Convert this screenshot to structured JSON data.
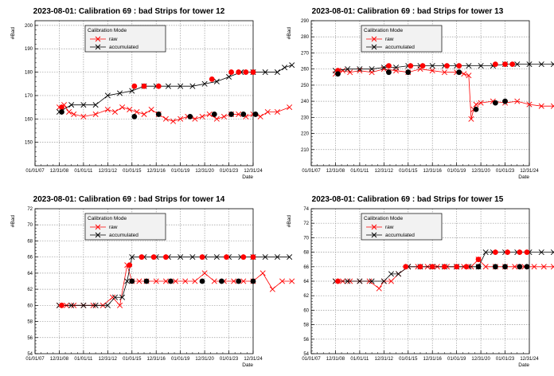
{
  "chart_data": [
    {
      "type": "scatter",
      "title": "2023-08-01: Calibration 69 : bad Strips for tower 12",
      "xlabel": "Date",
      "ylabel": "#Bad",
      "ylim": [
        140,
        202
      ],
      "yticks": [
        150,
        160,
        170,
        180,
        190,
        200
      ],
      "xtick_labels": [
        "01/01/07",
        "12/31/08",
        "01/01/11",
        "12/31/12",
        "01/01/15",
        "12/31/16",
        "01/01/19",
        "12/31/20",
        "01/01/23",
        "12/31/24"
      ],
      "legend": {
        "title": "Calibration Mode",
        "entries": [
          "raw",
          "accumulated"
        ]
      },
      "series": [
        {
          "name": "raw",
          "color": "#ff0000",
          "x": [
            1.0,
            1.2,
            1.4,
            1.6,
            2.0,
            2.5,
            3.0,
            3.3,
            3.6,
            3.9,
            4.2,
            4.5,
            4.8,
            5.1,
            5.4,
            5.7,
            6.0,
            6.3,
            6.6,
            6.9,
            7.2,
            7.5,
            7.8,
            8.1,
            8.4,
            8.7,
            9.0,
            9.3,
            9.6,
            10.0,
            10.5
          ],
          "y": [
            165,
            166,
            163,
            162,
            161,
            162,
            164,
            163,
            165,
            164,
            163,
            162,
            164,
            162,
            160,
            159,
            160,
            161,
            160,
            161,
            162,
            160,
            161,
            162,
            162,
            161,
            162,
            161,
            163,
            163,
            165
          ]
        },
        {
          "name": "accumulated",
          "color": "#000000",
          "x": [
            1.0,
            1.5,
            2.0,
            2.5,
            3.0,
            3.5,
            4.0,
            4.5,
            5.0,
            5.5,
            6.0,
            6.5,
            7.0,
            7.5,
            8.0,
            8.5,
            9.0,
            9.5,
            10.0,
            10.3,
            10.6
          ],
          "y": [
            163,
            166,
            166,
            166,
            170,
            171,
            172,
            174,
            174,
            174,
            174,
            174,
            175,
            176,
            178,
            180,
            180,
            180,
            180,
            182,
            183
          ]
        }
      ],
      "highlight_points": [
        {
          "color": "#ff0000",
          "x": [
            1.1,
            4.1,
            4.5,
            5.1,
            7.3,
            8.1,
            8.4,
            8.7,
            9.0
          ],
          "y": [
            165,
            174,
            174,
            174,
            177,
            180,
            180,
            180,
            180
          ]
        },
        {
          "color": "#000000",
          "x": [
            1.1,
            4.1,
            5.1,
            6.4,
            7.4,
            8.1,
            8.6,
            9.1
          ],
          "y": [
            163,
            161,
            162,
            161,
            162,
            162,
            162,
            162
          ]
        }
      ]
    },
    {
      "type": "scatter",
      "title": "2023-08-01: Calibration 69 : bad Strips for tower 13",
      "xlabel": "Date",
      "ylabel": "#Bad",
      "ylim": [
        200,
        290
      ],
      "yticks": [
        210,
        220,
        230,
        240,
        250,
        260,
        270,
        280,
        290
      ],
      "xtick_labels": [
        "01/01/07",
        "12/31/08",
        "01/01/11",
        "12/31/12",
        "01/01/15",
        "12/31/16",
        "01/01/19",
        "12/31/20",
        "01/01/23",
        "12/31/24"
      ],
      "legend": {
        "title": "Calibration Mode",
        "entries": [
          "raw",
          "accumulated"
        ]
      },
      "series": [
        {
          "name": "raw",
          "color": "#ff0000",
          "x": [
            1.0,
            1.3,
            1.6,
            2.0,
            2.5,
            3.0,
            3.5,
            4.0,
            4.5,
            5.0,
            5.5,
            6.0,
            6.3,
            6.5,
            6.6,
            6.7,
            6.8,
            7.0,
            7.5,
            8.0,
            8.5,
            9.0,
            9.5,
            10.0,
            10.5
          ],
          "y": [
            257,
            259,
            258,
            259,
            258,
            260,
            259,
            258,
            260,
            259,
            258,
            258,
            257,
            256,
            229,
            235,
            238,
            239,
            240,
            239,
            240,
            238,
            237,
            237,
            236
          ]
        },
        {
          "name": "accumulated",
          "color": "#000000",
          "x": [
            1.0,
            1.5,
            2.0,
            2.5,
            3.0,
            3.5,
            4.0,
            4.5,
            5.0,
            5.5,
            6.0,
            6.5,
            7.0,
            7.5,
            8.0,
            8.5,
            9.0,
            9.5,
            10.0,
            10.5
          ],
          "y": [
            259,
            260,
            260,
            260,
            261,
            261,
            262,
            262,
            262,
            262,
            262,
            262,
            262,
            262,
            263,
            263,
            263,
            263,
            263,
            263
          ]
        }
      ],
      "highlight_points": [
        {
          "color": "#ff0000",
          "x": [
            1.1,
            3.2,
            4.1,
            4.6,
            5.6,
            6.1,
            7.6,
            8.0,
            8.3
          ],
          "y": [
            259,
            262,
            262,
            262,
            262,
            262,
            263,
            263,
            263
          ]
        },
        {
          "color": "#000000",
          "x": [
            1.1,
            3.2,
            4.0,
            6.1,
            6.8,
            7.6,
            8.0
          ],
          "y": [
            257,
            258,
            258,
            258,
            235,
            239,
            240
          ]
        }
      ]
    },
    {
      "type": "scatter",
      "title": "2023-08-01: Calibration 69 : bad Strips for tower 14",
      "xlabel": "Date",
      "ylabel": "#Bad",
      "ylim": [
        54,
        72
      ],
      "yticks": [
        54,
        56,
        58,
        60,
        62,
        64,
        66,
        68,
        70,
        72
      ],
      "xtick_labels": [
        "01/01/07",
        "12/31/08",
        "01/01/11",
        "12/31/12",
        "01/01/15",
        "12/31/16",
        "01/01/19",
        "12/31/20",
        "01/01/23",
        "12/31/24"
      ],
      "legend": {
        "title": "Calibration Mode",
        "entries": [
          "raw",
          "accumulated"
        ]
      },
      "series": [
        {
          "name": "raw",
          "color": "#ff0000",
          "x": [
            1.0,
            1.3,
            1.6,
            2.0,
            2.4,
            2.8,
            3.2,
            3.5,
            3.8,
            4.0,
            4.3,
            4.6,
            5.0,
            5.4,
            5.8,
            6.2,
            6.6,
            7.0,
            7.4,
            7.8,
            8.2,
            8.6,
            9.0,
            9.4,
            9.8,
            10.2,
            10.6
          ],
          "y": [
            60,
            60,
            60,
            60,
            60,
            60,
            61,
            60,
            65,
            63,
            63,
            63,
            63,
            63,
            63,
            63,
            63,
            64,
            63,
            63,
            63,
            63,
            63,
            64,
            62,
            63,
            63
          ]
        },
        {
          "name": "accumulated",
          "color": "#000000",
          "x": [
            1.0,
            1.5,
            2.0,
            2.5,
            3.0,
            3.3,
            3.6,
            3.8,
            4.0,
            4.5,
            5.0,
            5.5,
            6.0,
            6.5,
            7.0,
            7.5,
            8.0,
            8.5,
            9.0,
            9.5,
            10.0,
            10.5
          ],
          "y": [
            60,
            60,
            60,
            60,
            60,
            61,
            61,
            63,
            66,
            66,
            66,
            66,
            66,
            66,
            66,
            66,
            66,
            66,
            66,
            66,
            66,
            66
          ]
        }
      ],
      "highlight_points": [
        {
          "color": "#ff0000",
          "x": [
            1.1,
            3.9,
            4.4,
            4.9,
            5.4,
            6.9,
            7.9,
            8.6,
            9.0
          ],
          "y": [
            60,
            65,
            66,
            66,
            66,
            66,
            66,
            66,
            66
          ]
        },
        {
          "color": "#000000",
          "x": [
            4.0,
            4.6,
            5.6,
            6.9,
            7.7,
            8.4,
            9.0
          ],
          "y": [
            63,
            63,
            63,
            63,
            63,
            63,
            63
          ]
        }
      ]
    },
    {
      "type": "scatter",
      "title": "2023-08-01: Calibration 69 : bad Strips for tower 15",
      "xlabel": "Date",
      "ylabel": "#Bad",
      "ylim": [
        54,
        74
      ],
      "yticks": [
        54,
        56,
        58,
        60,
        62,
        64,
        66,
        68,
        70,
        72,
        74
      ],
      "xtick_labels": [
        "01/01/07",
        "12/31/08",
        "01/01/11",
        "12/31/12",
        "01/01/15",
        "12/31/16",
        "01/01/19",
        "12/31/20",
        "01/01/23",
        "12/31/24"
      ],
      "legend": {
        "title": "Calibration Mode",
        "entries": [
          "raw",
          "accumulated"
        ]
      },
      "series": [
        {
          "name": "raw",
          "color": "#ff0000",
          "x": [
            1.0,
            1.3,
            1.6,
            2.0,
            2.4,
            2.8,
            3.0,
            3.3,
            3.6,
            4.0,
            4.4,
            4.8,
            5.2,
            5.6,
            6.0,
            6.3,
            6.6,
            6.9,
            7.2,
            7.6,
            8.0,
            8.4,
            8.8,
            9.2,
            9.6,
            10.0,
            10.4
          ],
          "y": [
            64,
            64,
            64,
            64,
            64,
            63,
            64,
            64,
            65,
            66,
            66,
            66,
            66,
            66,
            66,
            66,
            66,
            67,
            66,
            66,
            66,
            66,
            66,
            66,
            66,
            66,
            66
          ]
        },
        {
          "name": "accumulated",
          "color": "#000000",
          "x": [
            1.0,
            1.5,
            2.0,
            2.5,
            3.0,
            3.3,
            3.6,
            4.0,
            4.5,
            5.0,
            5.5,
            6.0,
            6.5,
            6.9,
            7.2,
            7.5,
            8.0,
            8.5,
            9.0,
            9.5,
            10.0,
            10.4
          ],
          "y": [
            64,
            64,
            64,
            64,
            64,
            65,
            65,
            66,
            66,
            66,
            66,
            66,
            66,
            66,
            68,
            68,
            68,
            68,
            68,
            68,
            68,
            68
          ]
        }
      ],
      "highlight_points": [
        {
          "color": "#ff0000",
          "x": [
            1.1,
            3.9,
            4.5,
            5.0,
            5.5,
            6.0,
            6.4,
            6.9,
            7.6,
            8.1,
            8.6,
            8.9
          ],
          "y": [
            64,
            66,
            66,
            66,
            66,
            66,
            66,
            67,
            68,
            68,
            68,
            68
          ]
        },
        {
          "color": "#000000",
          "x": [
            6.9,
            7.6,
            8.0,
            8.6,
            8.9
          ],
          "y": [
            66,
            66,
            66,
            66,
            66
          ]
        }
      ]
    }
  ]
}
